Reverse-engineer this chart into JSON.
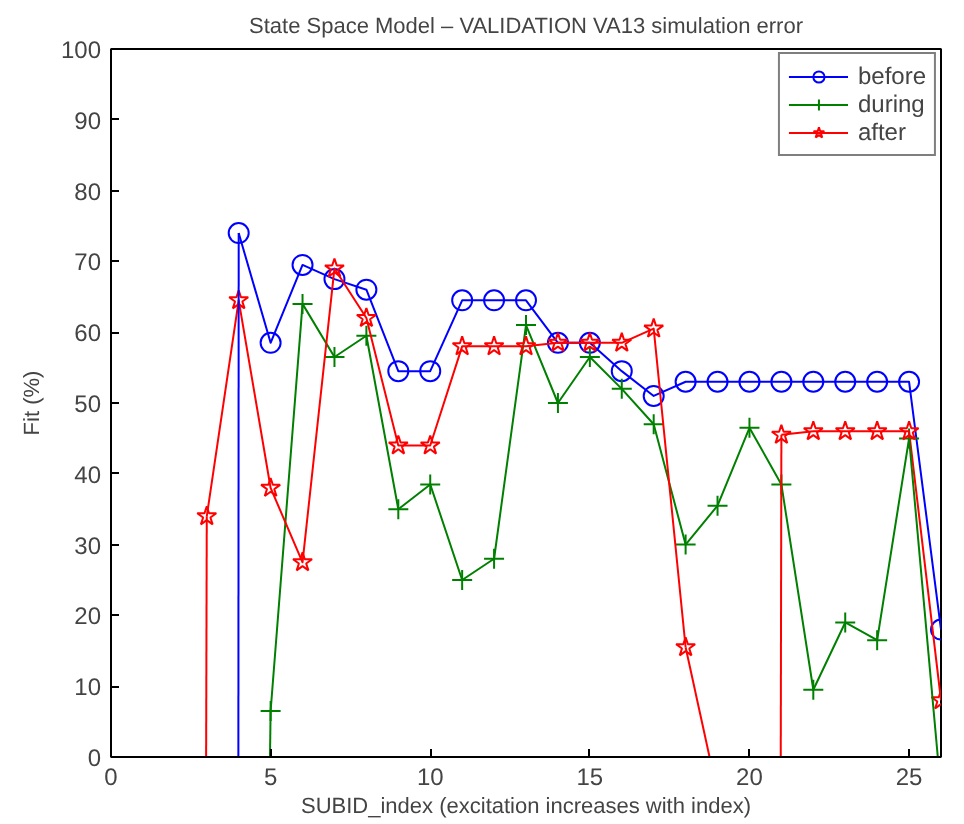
{
  "chart_data": {
    "type": "line",
    "title": "State Space Model – VALIDATION VA13 simulation error",
    "xlabel": "SUBID_index (excitation increases with index)",
    "ylabel": "Fit (%)",
    "xlim": [
      0,
      26
    ],
    "ylim": [
      0,
      100
    ],
    "xticks": [
      0,
      5,
      10,
      15,
      20,
      25
    ],
    "yticks": [
      0,
      10,
      20,
      30,
      40,
      50,
      60,
      70,
      80,
      90,
      100
    ],
    "grid": false,
    "legend": "top right",
    "line_style": "solid",
    "series": [
      {
        "name": "before",
        "color": "#0000ff",
        "marker": "circle",
        "x": [
          4,
          5,
          6,
          7,
          8,
          9,
          10,
          11,
          12,
          13,
          14,
          15,
          16,
          17,
          18,
          19,
          20,
          21,
          22,
          23,
          24,
          25,
          26
        ],
        "values": [
          74,
          58.5,
          69.5,
          67.5,
          66,
          54.5,
          54.5,
          64.5,
          64.5,
          64.5,
          58.5,
          58.5,
          54.5,
          51,
          53,
          53,
          53,
          53,
          53,
          53,
          53,
          53,
          18
        ]
      },
      {
        "name": "during",
        "color": "#008000",
        "marker": "cross",
        "x": [
          5,
          6,
          7,
          8,
          9,
          10,
          11,
          12,
          13,
          14,
          15,
          16,
          17,
          18,
          19,
          20,
          21,
          22,
          23,
          24,
          25
        ],
        "values": [
          6.5,
          64,
          56.5,
          59.5,
          35,
          38.5,
          25,
          28,
          61,
          50,
          56.5,
          52,
          47,
          30,
          35.5,
          46.5,
          38.5,
          9.5,
          19,
          16.5,
          45
        ]
      },
      {
        "name": "after",
        "color": "#ff0000",
        "marker": "star",
        "x": [
          3,
          4,
          5,
          6,
          7,
          8,
          9,
          10,
          11,
          12,
          13,
          14,
          15,
          16,
          17,
          18,
          19,
          20,
          21,
          22,
          23,
          24,
          25,
          26
        ],
        "values": [
          34,
          64.5,
          38,
          27.5,
          69,
          62,
          44,
          44,
          58,
          58,
          58,
          58.5,
          58.5,
          58.5,
          60.5,
          15.5,
          null,
          null,
          45.5,
          46,
          46,
          46,
          46,
          8
        ]
      },
      {
        "color": "#0000ff",
        "marker": "none",
        "x": [
          3.99,
          4
        ],
        "values": [
          0,
          74
        ]
      },
      {
        "color": "#008000",
        "marker": "none",
        "x": [
          4.98,
          5
        ],
        "values": [
          0,
          6.5
        ]
      },
      {
        "color": "#008000",
        "marker": "none",
        "x": [
          25,
          25.9
        ],
        "values": [
          45,
          0
        ]
      },
      {
        "color": "#ff0000",
        "marker": "none",
        "x": [
          2.98,
          3
        ],
        "values": [
          0,
          34
        ]
      },
      {
        "color": "#ff0000",
        "marker": "none",
        "x": [
          18,
          18.75
        ],
        "values": [
          15.5,
          0
        ]
      },
      {
        "color": "#ff0000",
        "marker": "none",
        "x": [
          20.98,
          21
        ],
        "values": [
          0,
          45.5
        ]
      }
    ]
  }
}
